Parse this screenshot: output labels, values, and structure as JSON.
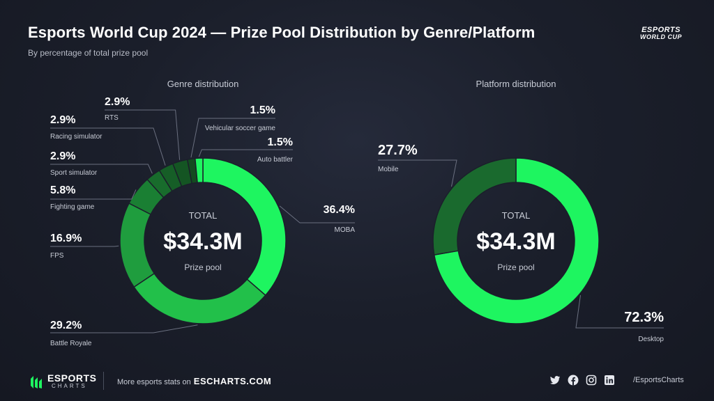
{
  "header": {
    "title": "Esports World Cup 2024 — Prize Pool Distribution by Genre/Platform",
    "subtitle": "By percentage of total prize pool",
    "logo_line1": "ESPORTS",
    "logo_line2": "WORLD CUP"
  },
  "colors": {
    "accent": "#1ef560",
    "genre": [
      "#1ef560",
      "#22c04a",
      "#1f9d3e",
      "#1a7f33",
      "#186c2c",
      "#165e27",
      "#145523",
      "#134b20"
    ],
    "platform": [
      "#1ef560",
      "#1a6a2e"
    ]
  },
  "chart_data": [
    {
      "type": "pie",
      "title": "Genre distribution",
      "center": {
        "label_top": "TOTAL",
        "value": "$34.3M",
        "label_bottom": "Prize pool"
      },
      "categories": [
        "MOBA",
        "Battle Royale",
        "FPS",
        "Fighting game",
        "Sport simulator",
        "Racing simulator",
        "RTS",
        "Vehicular soccer game",
        "Auto battler"
      ],
      "values": [
        36.4,
        29.2,
        16.9,
        5.8,
        2.9,
        2.9,
        2.9,
        1.5,
        1.5
      ],
      "labels": [
        "36.4%",
        "29.2%",
        "16.9%",
        "5.8%",
        "2.9%",
        "2.9%",
        "2.9%",
        "1.5%",
        "1.5%"
      ]
    },
    {
      "type": "pie",
      "title": "Platform distribution",
      "center": {
        "label_top": "TOTAL",
        "value": "$34.3M",
        "label_bottom": "Prize pool"
      },
      "categories": [
        "Desktop",
        "Mobile"
      ],
      "values": [
        72.3,
        27.7
      ],
      "labels": [
        "72.3%",
        "27.7%"
      ]
    }
  ],
  "footer": {
    "brand_line1": "ESPORTS",
    "brand_line2": "CHARTS",
    "more_text": "More esports stats on",
    "more_link": "ESCHARTS.COM",
    "handle": "/EsportsCharts",
    "icons": [
      "twitter-icon",
      "facebook-icon",
      "instagram-icon",
      "linkedin-icon"
    ]
  }
}
